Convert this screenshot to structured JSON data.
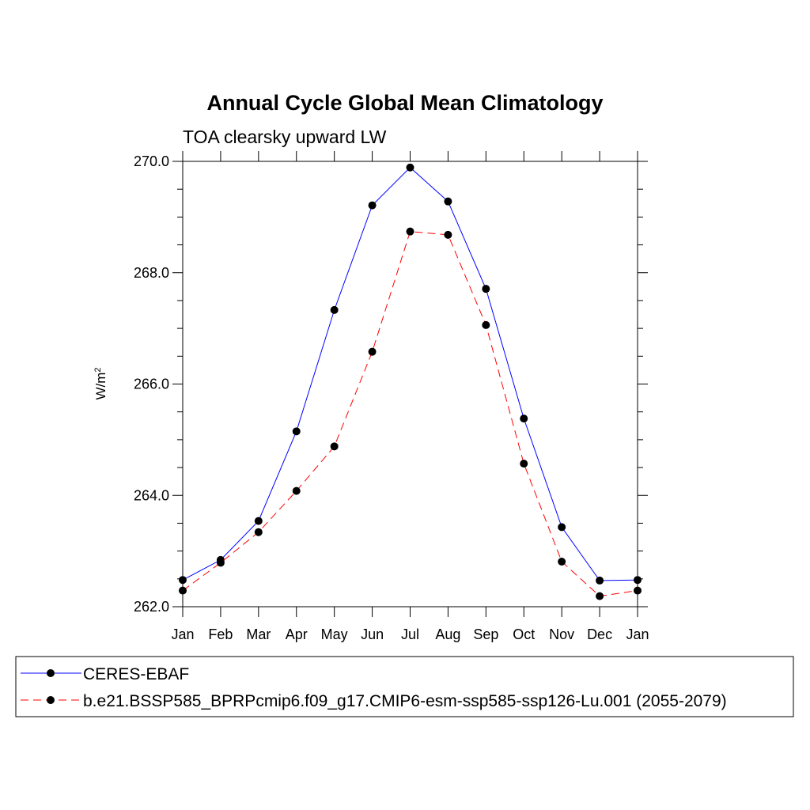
{
  "chart_data": {
    "type": "line",
    "title": "Annual Cycle Global Mean Climatology",
    "subtitle": "TOA clearsky upward LW",
    "ylabel_base": "W/m",
    "ylabel_sup": "2",
    "categories": [
      "Jan",
      "Feb",
      "Mar",
      "Apr",
      "May",
      "Jun",
      "Jul",
      "Aug",
      "Sep",
      "Oct",
      "Nov",
      "Dec",
      "Jan"
    ],
    "ylim": [
      262.0,
      270.0
    ],
    "yticks": [
      262.0,
      264.0,
      266.0,
      268.0,
      270.0
    ],
    "ytick_labels": [
      "262.0",
      "264.0",
      "266.0",
      "268.0",
      "270.0"
    ],
    "grid": false,
    "legend_placement": "bottom",
    "series": [
      {
        "name": "CERES-EBAF",
        "color": "#0000ff",
        "dash": "solid",
        "values": [
          262.48,
          262.84,
          263.54,
          265.15,
          267.33,
          269.21,
          269.89,
          269.28,
          267.71,
          265.38,
          263.43,
          262.47,
          262.48
        ]
      },
      {
        "name": "b.e21.BSSP585_BPRPcmip6.f09_g17.CMIP6-esm-ssp585-ssp126-Lu.001 (2055-2079)",
        "color": "#ff0000",
        "dash": "dashed",
        "values": [
          262.29,
          262.79,
          263.34,
          264.08,
          264.88,
          266.58,
          268.74,
          268.68,
          267.06,
          264.57,
          262.81,
          262.19,
          262.29
        ]
      }
    ]
  }
}
